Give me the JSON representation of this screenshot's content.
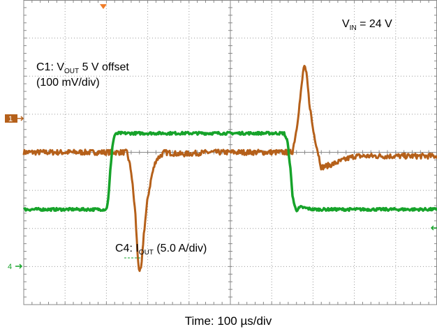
{
  "chart_data": {
    "type": "line",
    "xlabel": "Time: 100 µs/div",
    "x_units": "µs",
    "xlim": [
      0,
      1000
    ],
    "grid": true,
    "divisions": {
      "x": 10,
      "y": 8
    },
    "annotations": {
      "vin": {
        "main": "V",
        "sub": "IN",
        "rest": " = 24 V"
      },
      "c1_line1": {
        "pre": "C1: V",
        "sub": "OUT",
        "rest": " 5 V offset"
      },
      "c1_line2": "(100 mV/div)",
      "c4": {
        "pre": "C4: I",
        "sub": "OUT",
        "rest": " (5.0 A/div)"
      }
    },
    "channel_markers": {
      "c1": "1",
      "c4": "4"
    },
    "series": [
      {
        "channel": "C1",
        "color": "#b5601a",
        "units": "mV",
        "div_units": 100,
        "ylim": [
          -400,
          400
        ],
        "x": [
          0,
          250,
          260,
          270,
          275,
          280,
          285,
          290,
          300,
          310,
          320,
          340,
          380,
          450,
          600,
          650,
          660,
          670,
          678,
          685,
          690,
          700,
          720,
          750,
          800,
          900,
          1000
        ],
        "values": [
          0,
          0,
          -50,
          -160,
          -260,
          -320,
          -300,
          -220,
          -120,
          -60,
          -20,
          0,
          -5,
          0,
          0,
          0,
          60,
          150,
          230,
          200,
          140,
          60,
          -40,
          -30,
          -10,
          -10,
          -10
        ]
      },
      {
        "channel": "C4",
        "color": "#16a32a",
        "units": "A",
        "div_units": 5.0,
        "ylim": [
          -20,
          20
        ],
        "x": [
          0,
          200,
          205,
          210,
          215,
          220,
          230,
          240,
          600,
          630,
          638,
          645,
          650,
          655,
          660,
          670,
          700,
          1000
        ],
        "values": [
          -7.5,
          -7.5,
          -6,
          -2,
          1,
          2.3,
          2.5,
          2.5,
          2.5,
          2.5,
          1.5,
          -2,
          -5.5,
          -7,
          -7.6,
          -7.2,
          -7.5,
          -7.5
        ]
      }
    ]
  }
}
